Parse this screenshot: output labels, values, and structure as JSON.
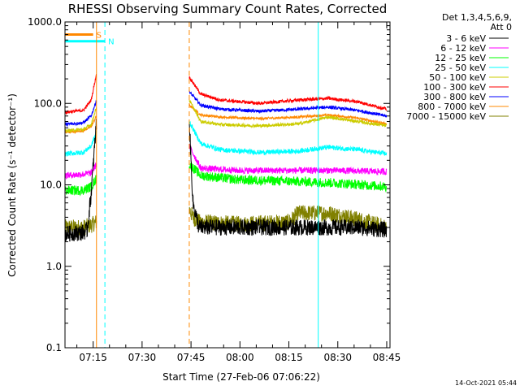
{
  "chart_data": {
    "type": "line",
    "title": "RHESSI Observing Summary Count Rates, Corrected",
    "xlabel": "Start Time (27-Feb-06 07:06:22)",
    "ylabel": "Corrected Count Rate (s⁻¹ detector⁻¹)",
    "yscale": "log",
    "ylim": [
      0.1,
      1000
    ],
    "y_ticks": [
      "0.1",
      "1.0",
      "10.0",
      "100.0",
      "1000.0"
    ],
    "xlim": [
      7.1061,
      8.7667
    ],
    "x_ticks": [
      {
        "t": 7.25,
        "label": "07:15"
      },
      {
        "t": 7.5,
        "label": "07:30"
      },
      {
        "t": 7.75,
        "label": "07:45"
      },
      {
        "t": 8.0,
        "label": "08:00"
      },
      {
        "t": 8.25,
        "label": "08:15"
      },
      {
        "t": 8.5,
        "label": "08:30"
      },
      {
        "t": 8.75,
        "label": "08:45"
      }
    ],
    "data_gap": [
      7.267,
      7.741
    ],
    "legend_header": [
      "Det 1,3,4,5,6,9,",
      "Att 0"
    ],
    "series": [
      {
        "name": "3 - 6 keV",
        "color": "#000000",
        "noise": 0.1,
        "t": [
          7.106,
          7.2,
          7.22,
          7.24,
          7.267,
          7.741,
          7.76,
          7.79,
          8.0,
          8.25,
          8.3,
          8.45,
          8.6,
          8.75
        ],
        "y": [
          2.5,
          2.6,
          2.8,
          8,
          60,
          60,
          6,
          3,
          3,
          3,
          3,
          3,
          3,
          2.8
        ]
      },
      {
        "name": "6 - 12 keV",
        "color": "#ff00ff",
        "noise": 0.04,
        "t": [
          7.106,
          7.2,
          7.24,
          7.267,
          7.741,
          7.8,
          8.0,
          8.3,
          8.5,
          8.75
        ],
        "y": [
          13,
          13.5,
          14,
          18,
          30,
          16,
          15,
          15,
          15,
          14.5
        ]
      },
      {
        "name": "12 - 25 keV",
        "color": "#00ff00",
        "noise": 0.06,
        "t": [
          7.106,
          7.2,
          7.24,
          7.267,
          7.741,
          7.8,
          8.0,
          8.3,
          8.5,
          8.75
        ],
        "y": [
          8.5,
          8.6,
          9.5,
          12,
          18,
          13,
          11.5,
          11,
          10.5,
          9.5
        ]
      },
      {
        "name": "25 - 50 keV",
        "color": "#00ffff",
        "noise": 0.03,
        "t": [
          7.106,
          7.2,
          7.24,
          7.267,
          7.741,
          7.8,
          7.9,
          8.1,
          8.3,
          8.45,
          8.6,
          8.75
        ],
        "y": [
          24,
          25,
          30,
          45,
          60,
          32,
          27,
          25,
          26,
          29,
          27,
          24
        ]
      },
      {
        "name": "50 - 100 keV",
        "color": "#cccc00",
        "noise": 0.02,
        "t": [
          7.106,
          7.2,
          7.24,
          7.267,
          7.741,
          7.8,
          7.9,
          8.1,
          8.3,
          8.45,
          8.6,
          8.75
        ],
        "y": [
          46,
          48,
          55,
          90,
          110,
          60,
          55,
          53,
          56,
          68,
          60,
          53
        ]
      },
      {
        "name": "100 - 300 keV",
        "color": "#ff0000",
        "noise": 0.02,
        "t": [
          7.106,
          7.2,
          7.24,
          7.267,
          7.741,
          7.8,
          7.9,
          8.1,
          8.3,
          8.45,
          8.6,
          8.75
        ],
        "y": [
          78,
          82,
          110,
          230,
          210,
          130,
          110,
          100,
          110,
          115,
          105,
          85
        ]
      },
      {
        "name": "300 - 800 keV",
        "color": "#0000ff",
        "noise": 0.02,
        "t": [
          7.106,
          7.2,
          7.24,
          7.267,
          7.741,
          7.8,
          7.9,
          8.1,
          8.3,
          8.45,
          8.6,
          8.75
        ],
        "y": [
          55,
          58,
          70,
          110,
          140,
          95,
          85,
          80,
          85,
          90,
          82,
          70
        ]
      },
      {
        "name": "800 - 7000 keV",
        "color": "#ff8800",
        "noise": 0.015,
        "t": [
          7.106,
          7.2,
          7.24,
          7.267,
          7.741,
          7.8,
          7.9,
          8.1,
          8.3,
          8.45,
          8.6,
          8.75
        ],
        "y": [
          44,
          46,
          52,
          70,
          95,
          72,
          68,
          65,
          68,
          72,
          66,
          56
        ]
      },
      {
        "name": "7000 - 15000 keV",
        "color": "#808000",
        "noise": 0.1,
        "t": [
          7.106,
          7.2,
          7.24,
          7.267,
          7.741,
          7.76,
          7.79,
          8.0,
          8.25,
          8.3,
          8.45,
          8.6,
          8.75
        ],
        "y": [
          3,
          3,
          3.2,
          3.5,
          5,
          4,
          3.5,
          3.3,
          3.5,
          4.5,
          4.5,
          3.8,
          3
        ]
      }
    ],
    "intervals": [
      {
        "label": "S",
        "color": "#ff8800",
        "t_start": 7.1,
        "t_end": 7.25,
        "level": 700
      },
      {
        "label": "N",
        "color": "#00ffff",
        "t_start": 7.1,
        "t_end": 7.31,
        "level": 580
      }
    ],
    "markers": [
      {
        "kind": "cyan_solid",
        "t": 7.106
      },
      {
        "kind": "orange_solid",
        "t": 7.267
      },
      {
        "kind": "cyan_dashed",
        "t": 7.31
      },
      {
        "kind": "orange_dashed",
        "t": 7.741
      },
      {
        "kind": "cyan_solid",
        "t": 8.4
      },
      {
        "kind": "cyan_dashed",
        "t": 8.767
      }
    ],
    "grid": false,
    "legend_position": "right",
    "timestamp": "14-Oct-2021 05:44"
  }
}
